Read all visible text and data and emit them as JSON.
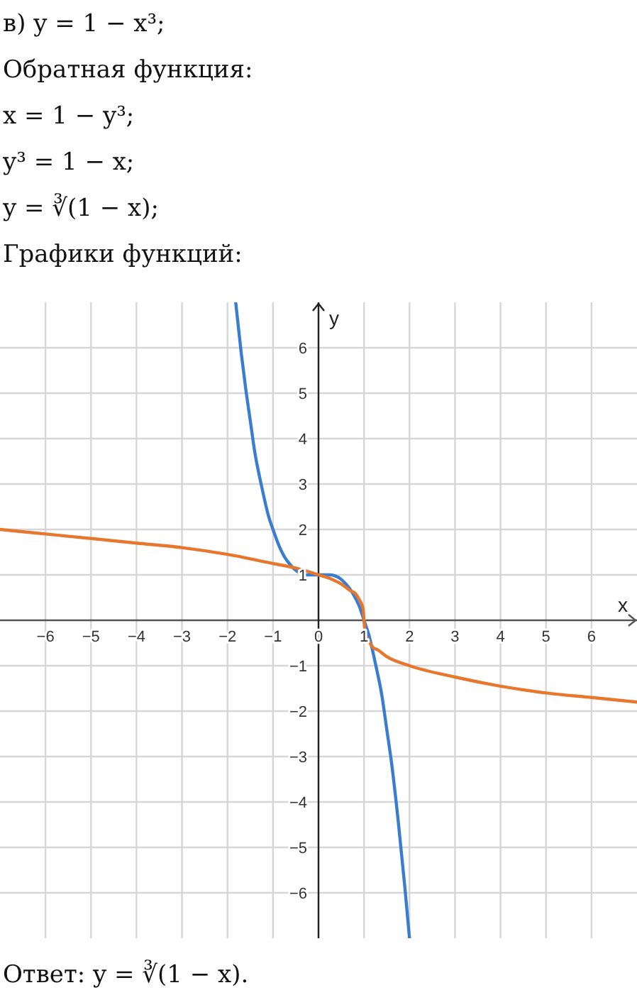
{
  "chart_data": {
    "type": "line",
    "annotations": [
      "в) y = 1 − x³;",
      "Обратная функция:",
      "x = 1 − y³;",
      "y³ = 1 − x;",
      "y = ∛(1 − x);",
      "Графики функций:",
      "Ответ:  y = ∛(1 − x)."
    ],
    "xlabel": "x",
    "ylabel": "y",
    "xlim": [
      -7,
      7
    ],
    "ylim": [
      -7,
      7
    ],
    "xticks": [
      -6,
      -5,
      -4,
      -3,
      -2,
      -1,
      0,
      1,
      2,
      3,
      4,
      5,
      6
    ],
    "yticks": [
      -6,
      -5,
      -4,
      -3,
      -2,
      -1,
      1,
      2,
      3,
      4,
      5,
      6
    ],
    "grid": true,
    "line_style": "solid",
    "marker": "none",
    "series": [
      {
        "color": "#3a7dd0",
        "x": [
          -1.82,
          -1.7,
          -1.6,
          -1.5,
          -1.4,
          -1.25,
          -1.1,
          -1,
          -0.85,
          -0.75,
          -0.6,
          -0.5,
          -0.25,
          0,
          0.25,
          0.5,
          0.6,
          0.75,
          0.9,
          1,
          1.1,
          1.25,
          1.4,
          1.5,
          1.6,
          1.75,
          1.9,
          2
        ],
        "values": [
          7,
          5.9,
          5.1,
          4.4,
          3.7,
          2.95,
          2.3,
          2,
          1.6,
          1.4,
          1.2,
          1.1,
          1,
          1,
          1,
          0.9,
          0.8,
          0.6,
          0.3,
          0,
          -0.3,
          -0.95,
          -1.7,
          -2.4,
          -3.1,
          -4.4,
          -5.9,
          -7
        ]
      },
      {
        "color": "#e8772e",
        "x": [
          -7,
          -6,
          -5,
          -4,
          -3,
          -2,
          -1,
          -0.5,
          0,
          0.3,
          0.5,
          0.7,
          0.8,
          0.9,
          0.95,
          0.98,
          1,
          1.02,
          1.05,
          1.1,
          1.2,
          1.3,
          1.5,
          2,
          3,
          4,
          5,
          6,
          7
        ],
        "values": [
          2,
          1.9,
          1.8,
          1.7,
          1.6,
          1.45,
          1.25,
          1.15,
          1,
          0.9,
          0.8,
          0.65,
          0.6,
          0.45,
          0.35,
          0.25,
          0,
          -0.25,
          -0.35,
          -0.45,
          -0.6,
          -0.65,
          -0.8,
          -1,
          -1.25,
          -1.45,
          -1.6,
          -1.7,
          -1.8
        ]
      }
    ]
  }
}
